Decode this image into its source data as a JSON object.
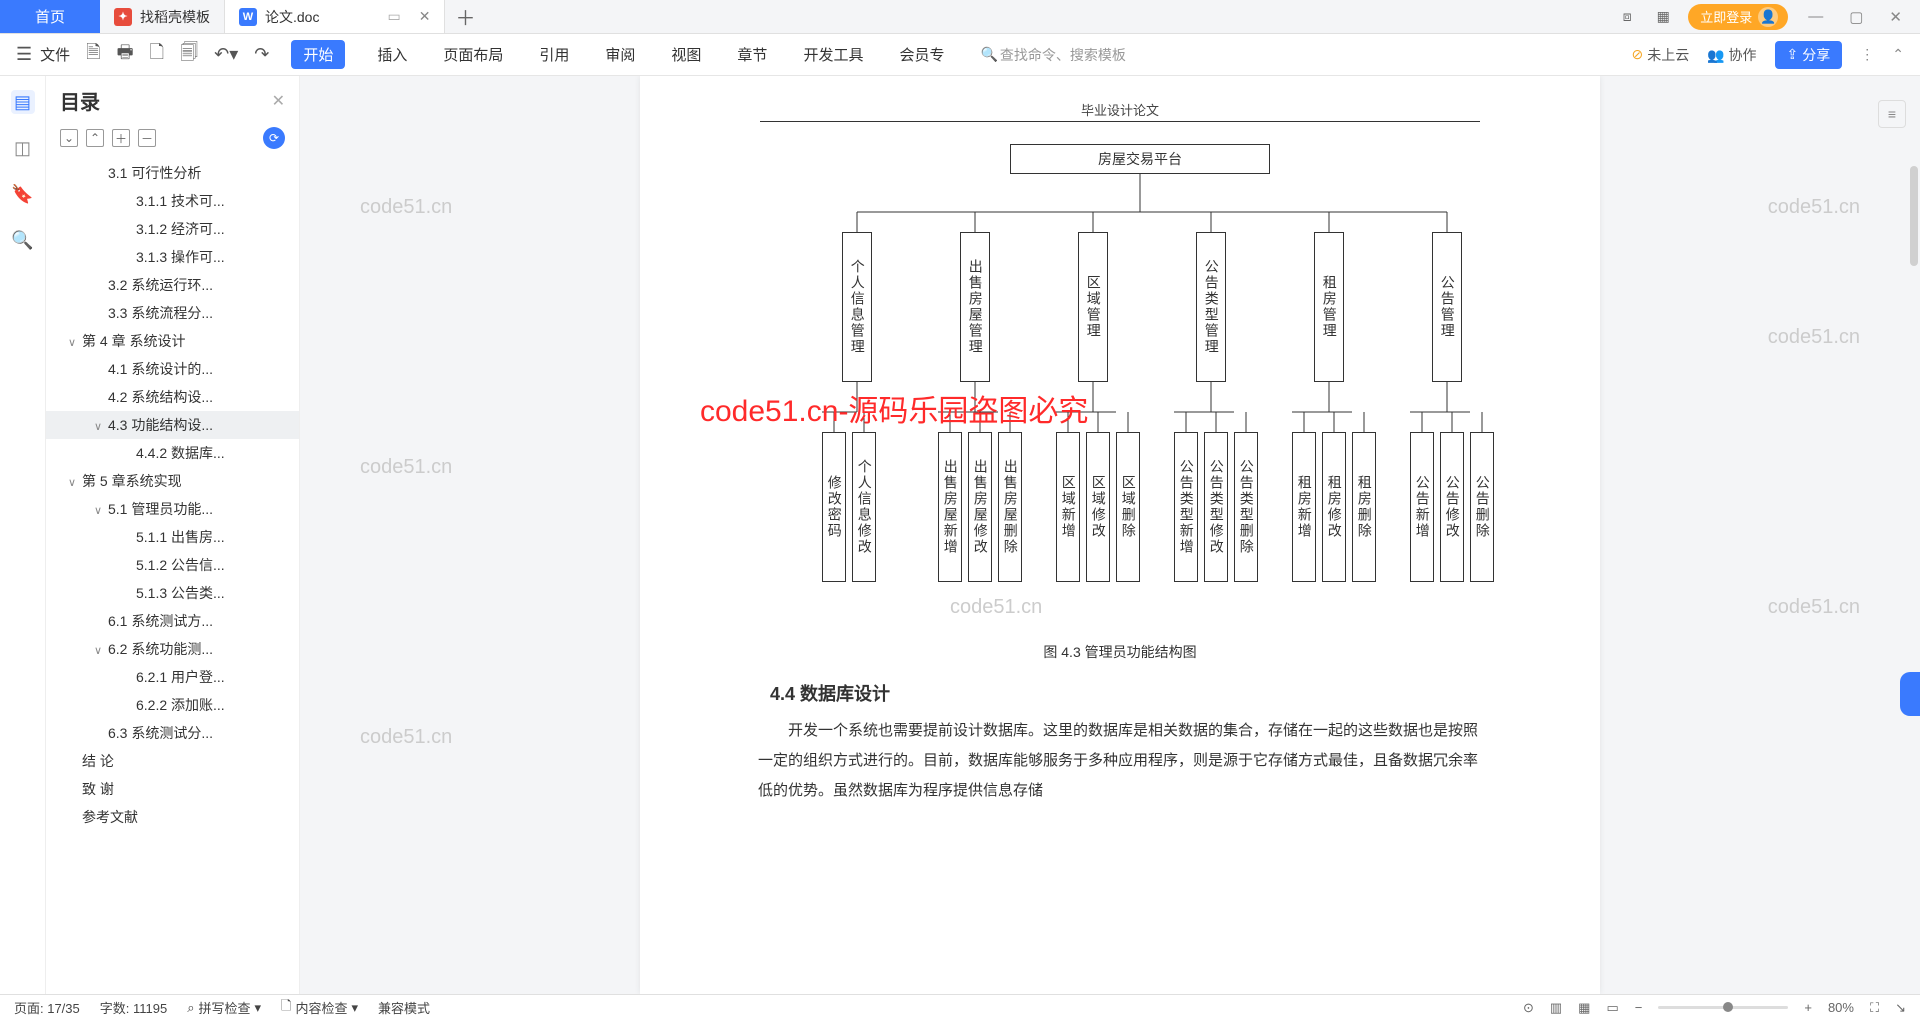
{
  "tabs": {
    "home": "首页",
    "t1": "找稻壳模板",
    "t2": "论文.doc"
  },
  "login": "立即登录",
  "ribbon": {
    "file": "文件",
    "tabs": [
      "开始",
      "插入",
      "页面布局",
      "引用",
      "审阅",
      "视图",
      "章节",
      "开发工具",
      "会员专"
    ],
    "search": "查找命令、搜索模板",
    "cloud": "未上云",
    "collab": "协作",
    "share": "分享"
  },
  "outline": {
    "title": "目录",
    "items": [
      {
        "t": "3.1 可行性分析",
        "ind": 2,
        "chev": ""
      },
      {
        "t": "3.1.1 技术可...",
        "ind": 3
      },
      {
        "t": "3.1.2 经济可...",
        "ind": 3
      },
      {
        "t": "3.1.3 操作可...",
        "ind": 3
      },
      {
        "t": "3.2 系统运行环...",
        "ind": 2
      },
      {
        "t": "3.3 系统流程分...",
        "ind": 2
      },
      {
        "t": "第 4 章  系统设计",
        "ind": 1,
        "chev": "∨"
      },
      {
        "t": "4.1 系统设计的...",
        "ind": 2
      },
      {
        "t": "4.2 系统结构设...",
        "ind": 2
      },
      {
        "t": "4.3 功能结构设...",
        "ind": 2,
        "chev": "∨",
        "sel": true
      },
      {
        "t": "4.4.2 数据库...",
        "ind": 3
      },
      {
        "t": "第 5 章系统实现",
        "ind": 1,
        "chev": "∨"
      },
      {
        "t": "5.1 管理员功能...",
        "ind": 2,
        "chev": "∨"
      },
      {
        "t": "5.1.1 出售房...",
        "ind": 3
      },
      {
        "t": "5.1.2 公告信...",
        "ind": 3
      },
      {
        "t": "5.1.3 公告类...",
        "ind": 3
      },
      {
        "t": "6.1 系统测试方...",
        "ind": 2
      },
      {
        "t": "6.2  系统功能测...",
        "ind": 2,
        "chev": "∨"
      },
      {
        "t": "6.2.1 用户登...",
        "ind": 3
      },
      {
        "t": "6.2.2 添加账...",
        "ind": 3
      },
      {
        "t": "6.3 系统测试分...",
        "ind": 2
      },
      {
        "t": "结   论",
        "ind": 1
      },
      {
        "t": "致   谢",
        "ind": 1
      },
      {
        "t": "参考文献",
        "ind": 1
      }
    ]
  },
  "doc": {
    "header": "毕业设计论文",
    "chart": {
      "root": "房屋交易平台",
      "mids": [
        "个人信息管理",
        "出售房屋管理",
        "区域管理",
        "公告类型管理",
        "租房管理",
        "公告管理"
      ],
      "leaves": [
        [
          "修改密码",
          "个人信息修改"
        ],
        [
          "出售房屋新增",
          "出售房屋修改",
          "出售房屋删除"
        ],
        [
          "区域新增",
          "区域修改",
          "区域删除"
        ],
        [
          "公告类型新增",
          "公告类型修改",
          "公告类型删除"
        ],
        [
          "租房新增",
          "租房修改",
          "租房删除"
        ],
        [
          "公告新增",
          "公告修改",
          "公告删除"
        ]
      ],
      "mid_x": [
        92,
        210,
        328,
        446,
        564,
        682
      ],
      "leaf_group_x": [
        72,
        188,
        306,
        424,
        542,
        660
      ]
    },
    "caption": "图 4.3 管理员功能结构图",
    "section44": "4.4  数据库设计",
    "p1": "开发一个系统也需要提前设计数据库。这里的数据库是相关数据的集合，存储在一起的这些数据也是按照一定的组织方式进行的。目前，数据库能够服务于多种应用程序，则是源于它存储方式最佳，且备数据冗余率低的优势。虽然数据库为程序提供信息存储",
    "redwm": "code51.cn-源码乐园盗图必究",
    "wm": "code51.cn"
  },
  "status": {
    "page": "页面: 17/35",
    "words": "字数: 11195",
    "spell": "拼写检查",
    "content": "内容检查",
    "compat": "兼容模式",
    "zoom": "80%"
  }
}
